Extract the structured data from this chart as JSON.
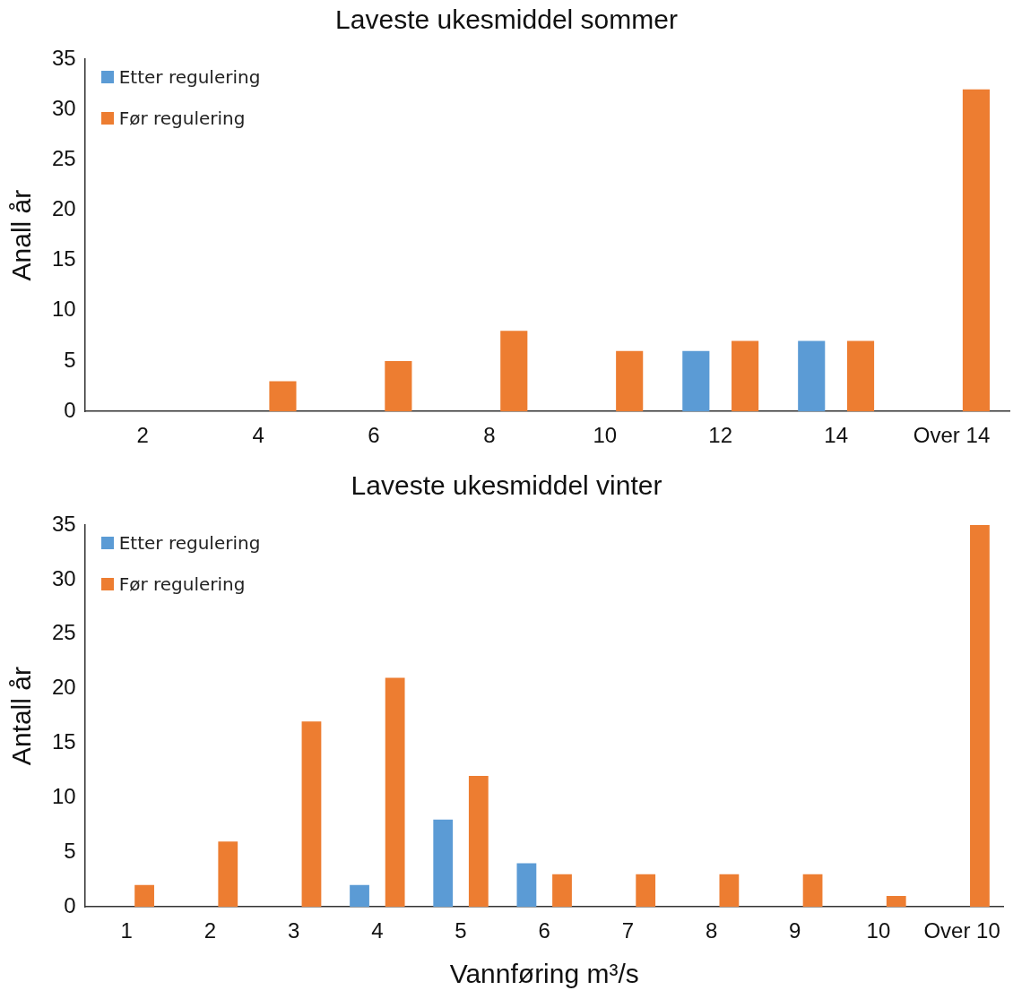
{
  "chart_data": [
    {
      "type": "bar",
      "title": "Laveste ukesmiddel sommer",
      "ylabel": "Anall år",
      "categories": [
        "2",
        "4",
        "6",
        "8",
        "10",
        "12",
        "14",
        "Over 14"
      ],
      "series": [
        {
          "name": "Etter regulering",
          "color": "#5b9bd5",
          "values": [
            0,
            0,
            0,
            0,
            0,
            6,
            7,
            0
          ]
        },
        {
          "name": "Før regulering",
          "color": "#ed7d31",
          "values": [
            0,
            3,
            5,
            8,
            6,
            7,
            7,
            32
          ]
        }
      ],
      "ylim": [
        0,
        35
      ],
      "yticks": [
        0,
        5,
        10,
        15,
        20,
        25,
        30,
        35
      ],
      "grid": false,
      "legend": "top left"
    },
    {
      "type": "bar",
      "title": "Laveste ukesmiddel vinter",
      "ylabel": "Antall år",
      "xlabel": "Vannføring m³/s",
      "categories": [
        "1",
        "2",
        "3",
        "4",
        "5",
        "6",
        "7",
        "8",
        "9",
        "10",
        "Over 10"
      ],
      "series": [
        {
          "name": "Etter regulering",
          "color": "#5b9bd5",
          "values": [
            0,
            0,
            0,
            2,
            8,
            4,
            0,
            0,
            0,
            0,
            0
          ]
        },
        {
          "name": "Før regulering",
          "color": "#ed7d31",
          "values": [
            2,
            6,
            17,
            21,
            12,
            3,
            3,
            3,
            3,
            1,
            35
          ]
        }
      ],
      "ylim": [
        0,
        35
      ],
      "yticks": [
        0,
        5,
        10,
        15,
        20,
        25,
        30,
        35
      ],
      "grid": false,
      "legend": "top left"
    }
  ]
}
